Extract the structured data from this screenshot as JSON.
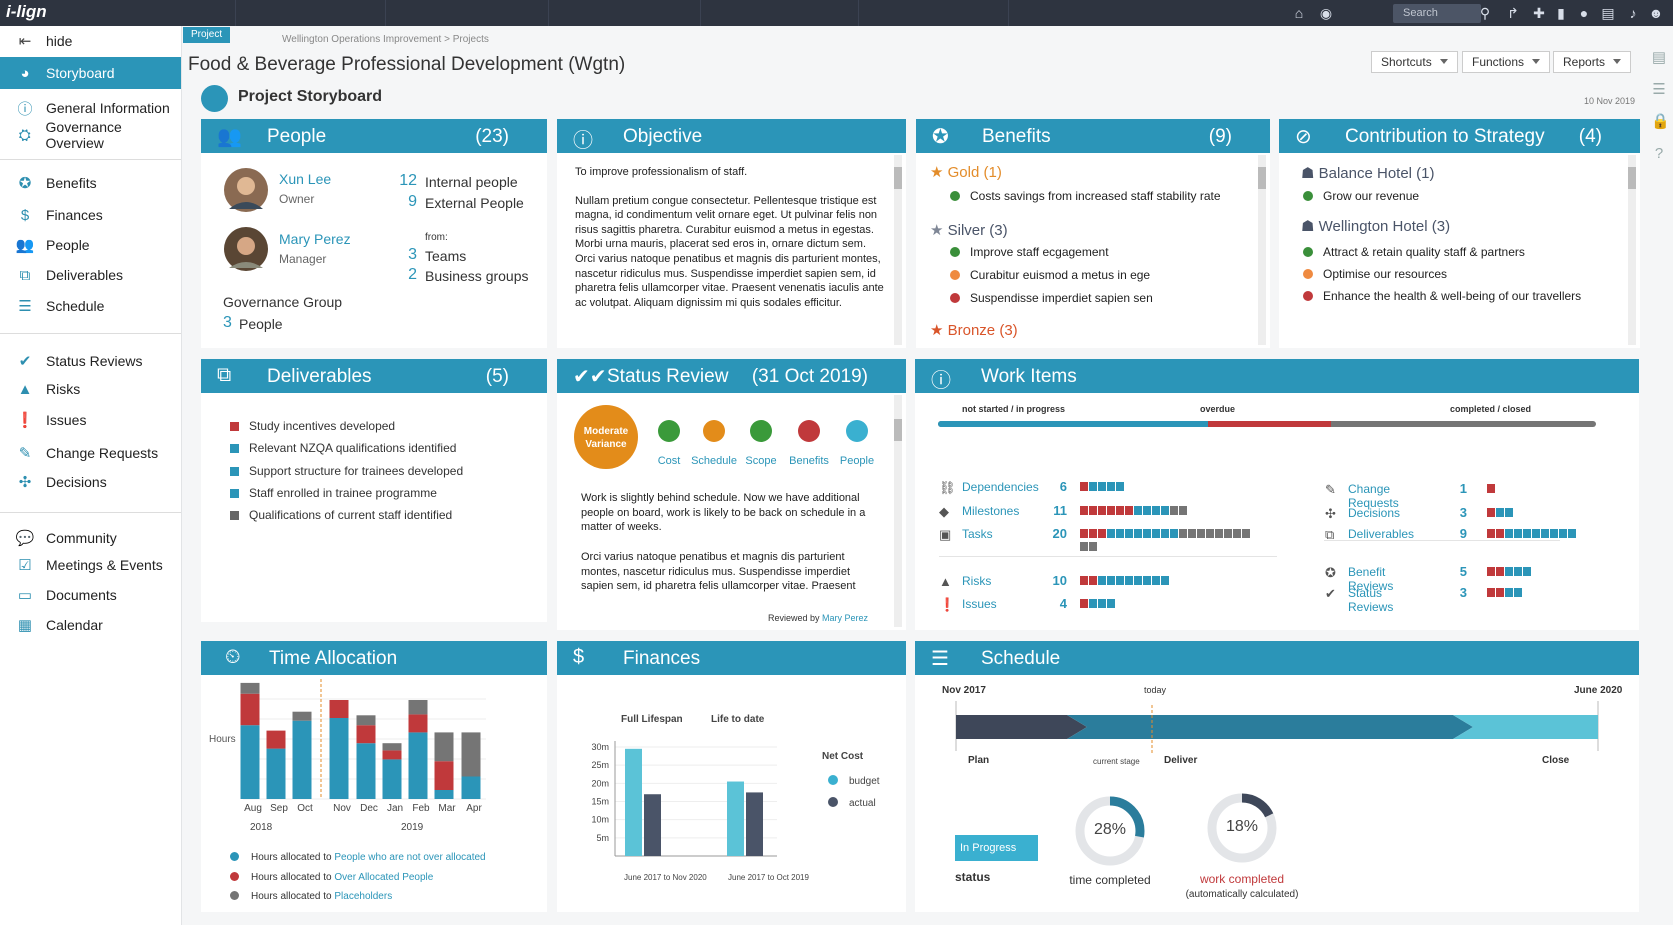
{
  "topbar": {
    "logo": "i-lign",
    "search_placeholder": "Search"
  },
  "sidebar": {
    "hide": "hide",
    "items": [
      {
        "label": "Storyboard",
        "icon": "palette-icon"
      },
      {
        "label": "General Information",
        "icon": "info-icon"
      },
      {
        "label": "Governance Overview",
        "icon": "governance-icon"
      },
      {
        "label": "Benefits",
        "icon": "award-icon"
      },
      {
        "label": "Finances",
        "icon": "dollar-icon"
      },
      {
        "label": "People",
        "icon": "people-icon"
      },
      {
        "label": "Deliverables",
        "icon": "boxes-icon"
      },
      {
        "label": "Schedule",
        "icon": "schedule-icon"
      },
      {
        "label": "Status Reviews",
        "icon": "double-check-icon"
      },
      {
        "label": "Risks",
        "icon": "warning-icon"
      },
      {
        "label": "Issues",
        "icon": "exclamation-icon"
      },
      {
        "label": "Change Requests",
        "icon": "edit-icon"
      },
      {
        "label": "Decisions",
        "icon": "decisions-icon"
      },
      {
        "label": "Community",
        "icon": "chat-icon"
      },
      {
        "label": "Meetings & Events",
        "icon": "calendar-check-icon"
      },
      {
        "label": "Documents",
        "icon": "folder-icon"
      },
      {
        "label": "Calendar",
        "icon": "calendar-icon"
      }
    ]
  },
  "header": {
    "tag": "Project",
    "breadcrumb": "Wellington Operations Improvement > Projects",
    "title": "Food & Beverage Professional Development (Wgtn)",
    "subtitle": "Project Storyboard",
    "date": "10 Nov 2019",
    "shortcuts": "Shortcuts",
    "functions": "Functions",
    "reports": "Reports"
  },
  "people": {
    "title": "People",
    "count": "(23)",
    "p1_name": "Xun Lee",
    "p1_role": "Owner",
    "p2_name": "Mary Perez",
    "p2_role": "Manager",
    "internal_n": "12",
    "internal_label": "Internal people",
    "external_n": "9",
    "external_label": "External People",
    "from": "from:",
    "teams_n": "3",
    "teams_label": "Teams",
    "bg_n": "2",
    "bg_label": "Business groups",
    "gov_label": "Governance Group",
    "gov_n": "3",
    "gov_people": "People"
  },
  "objective": {
    "title": "Objective",
    "line1": "To improve professionalism of staff.",
    "body": "Nullam pretium congue consectetur. Pellentesque tristique est magna, id condimentum velit ornare eget. Ut pulvinar felis non risus sagittis pharetra. Curabitur euismod a metus in egestas. Morbi urna mauris, placerat sed eros in, ornare dictum sem. Orci varius natoque penatibus et magnis dis parturient montes, nascetur ridiculus mus. Suspendisse imperdiet sapien sem, id pharetra felis ullamcorper vitae. Praesent venenatis iaculis ante ac volutpat. Aliquam dignissim mi quis sodales efficitur."
  },
  "benefits": {
    "title": "Benefits",
    "count": "(9)",
    "gold": "Gold (1)",
    "gold_items": [
      "Costs savings from increased staff stability rate"
    ],
    "silver": "Silver (3)",
    "silver_items": [
      "Improve staff ecgagement",
      "Curabitur euismod a metus in ege",
      "Suspendisse imperdiet sapien sen"
    ],
    "bronze": "Bronze (3)"
  },
  "strategy": {
    "title": "Contribution to Strategy",
    "count": "(4)",
    "g1": "Balance Hotel (1)",
    "g1_items": [
      "Grow our revenue"
    ],
    "g2": "Wellington Hotel (3)",
    "g2_items": [
      "Attract & retain quality staff & partners",
      "Optimise our resources",
      "Enhance the health & well-being of our travellers"
    ]
  },
  "deliverables": {
    "title": "Deliverables",
    "count": "(5)",
    "items": [
      "Study incentives developed",
      "Relevant NZQA qualifications identified",
      "Support structure for trainees developed",
      "Staff enrolled in trainee programme",
      "Qualifications of current staff identified"
    ]
  },
  "status": {
    "title": "Status Review",
    "date": "(31 Oct 2019)",
    "badge_line1": "Moderate",
    "badge_line2": "Variance",
    "indicators": [
      "Cost",
      "Schedule",
      "Scope",
      "Benefits",
      "People"
    ],
    "text1": "Work is slightly behind schedule. Now we have additional people on board, work is likely to be back on schedule in a matter of weeks.",
    "text2": "Orci varius natoque penatibus et magnis dis parturient montes, nascetur ridiculus mus. Suspendisse imperdiet sapien sem, id pharetra felis ullamcorper vitae. Praesent",
    "reviewed_by": "Reviewed by",
    "reviewer": "Mary Perez"
  },
  "work": {
    "title": "Work Items",
    "bar_labels": [
      "not started / in progress",
      "overdue",
      "completed / closed"
    ],
    "left": [
      {
        "label": "Dependencies",
        "n": "6"
      },
      {
        "label": "Milestones",
        "n": "11"
      },
      {
        "label": "Tasks",
        "n": "20"
      },
      {
        "label": "Risks",
        "n": "10"
      },
      {
        "label": "Issues",
        "n": "4"
      }
    ],
    "right": [
      {
        "label": "Change Requests",
        "n": "1"
      },
      {
        "label": "Decisions",
        "n": "3"
      },
      {
        "label": "Deliverables",
        "n": "9"
      },
      {
        "label": "Benefit Reviews",
        "n": "5"
      },
      {
        "label": "Status Reviews",
        "n": "3"
      }
    ]
  },
  "time": {
    "title": "Time Allocation",
    "ylabel": "Hours",
    "months": [
      "Aug",
      "Sep",
      "Oct",
      "Nov",
      "Dec",
      "Jan",
      "Feb",
      "Mar",
      "Apr"
    ],
    "year1": "2018",
    "year2": "2019",
    "leg1_pre": "Hours allocated to ",
    "leg1_link": "People who are not over allocated",
    "leg2_pre": "Hours allocated to ",
    "leg2_link": "Over Allocated People",
    "leg3_pre": "Hours allocated to ",
    "leg3_link": "Placeholders"
  },
  "finances": {
    "title": "Finances",
    "head1": "Full Lifespan",
    "head2": "Life to date",
    "yticks": [
      "30m",
      "25m",
      "20m",
      "15m",
      "10m",
      "5m"
    ],
    "foot1": "June 2017 to Nov 2020",
    "foot2": "June 2017 to Oct 2019",
    "legend_title": "Net Cost",
    "budget": "budget",
    "actual": "actual"
  },
  "schedule": {
    "title": "Schedule",
    "start": "Nov 2017",
    "today": "today",
    "end": "June 2020",
    "plan": "Plan",
    "current": "current stage",
    "deliver": "Deliver",
    "close": "Close",
    "status_value": "In Progress",
    "status_label": "status",
    "time_pct": "28%",
    "time_label": "time completed",
    "work_pct": "18%",
    "work_label": "work completed",
    "work_note": "(automatically calculated)"
  },
  "chart_data": [
    {
      "type": "bar",
      "title": "Time Allocation",
      "ylabel": "Hours",
      "categories": [
        "Aug",
        "Sep",
        "Oct",
        "Nov",
        "Dec",
        "Jan",
        "Feb",
        "Mar",
        "Apr"
      ],
      "series": [
        {
          "name": "People who are not over allocated",
          "color": "#2b95b8",
          "values": [
            82,
            56,
            87,
            90,
            62,
            44,
            74,
            10,
            25
          ]
        },
        {
          "name": "Over Allocated People",
          "color": "#c0393b",
          "values": [
            35,
            20,
            0,
            20,
            20,
            10,
            20,
            32,
            0
          ]
        },
        {
          "name": "Placeholders",
          "color": "#757575",
          "values": [
            12,
            0,
            10,
            0,
            11,
            8,
            16,
            32,
            49
          ]
        }
      ]
    },
    {
      "type": "bar",
      "title": "Finances",
      "categories": [
        "Full Lifespan",
        "Life to date"
      ],
      "ylim": [
        0,
        30
      ],
      "series": [
        {
          "name": "budget",
          "color": "#5bc3d7",
          "values": [
            29.5,
            20.5
          ]
        },
        {
          "name": "actual",
          "color": "#4a5468",
          "values": [
            17,
            17.5
          ]
        }
      ]
    }
  ]
}
